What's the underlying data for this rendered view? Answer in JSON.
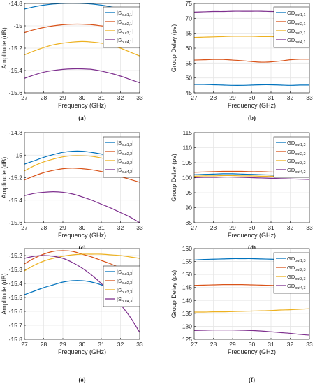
{
  "chart_data": [
    {
      "type": "line",
      "label": "(a)",
      "xlabel": "Frequency (GHz)",
      "ylabel": "Amplitude (dB)",
      "xlim": [
        27,
        33
      ],
      "ylim": [
        -15.6,
        -14.8
      ],
      "xticks": [
        27,
        28,
        29,
        30,
        31,
        32,
        33
      ],
      "yticks": [
        -15.6,
        -15.4,
        -15.2,
        -15,
        -14.8
      ],
      "ytick_labels": [
        "-15.6",
        "-15.4",
        "-15.2",
        "-15",
        "-14.8"
      ],
      "grid": true,
      "legend_position": "top-right",
      "x": [
        27,
        27.5,
        28,
        28.5,
        29,
        29.5,
        30,
        30.5,
        31,
        31.5,
        32,
        32.5,
        33
      ],
      "series": [
        {
          "name": "|S",
          "sub": "out1,1",
          "suffix": "|",
          "color": "#0072BD",
          "values": [
            -14.85,
            -14.83,
            -14.815,
            -14.805,
            -14.8,
            -14.798,
            -14.8,
            -14.805,
            -14.815,
            -14.83,
            -14.85,
            -14.88,
            -14.92
          ]
        },
        {
          "name": "|S",
          "sub": "out2,1",
          "suffix": "|",
          "color": "#D95319",
          "values": [
            -15.06,
            -15.035,
            -15.015,
            -15.0,
            -14.99,
            -14.985,
            -14.985,
            -14.99,
            -15.0,
            -15.01,
            -15.02,
            -15.035,
            -15.05
          ]
        },
        {
          "name": "|S",
          "sub": "out3,1",
          "suffix": "|",
          "color": "#EDB120",
          "values": [
            -15.26,
            -15.225,
            -15.195,
            -15.17,
            -15.155,
            -15.145,
            -15.14,
            -15.145,
            -15.155,
            -15.175,
            -15.2,
            -15.235,
            -15.27
          ]
        },
        {
          "name": "|S",
          "sub": "out4,1",
          "suffix": "|",
          "color": "#7E2F8E",
          "values": [
            -15.47,
            -15.44,
            -15.415,
            -15.4,
            -15.39,
            -15.385,
            -15.385,
            -15.39,
            -15.405,
            -15.425,
            -15.45,
            -15.48,
            -15.51
          ]
        }
      ]
    },
    {
      "type": "line",
      "label": "(b)",
      "xlabel": "Frequency (GHz)",
      "ylabel": "Group Delay (ps)",
      "xlim": [
        27,
        33
      ],
      "ylim": [
        45,
        75
      ],
      "xticks": [
        27,
        28,
        29,
        30,
        31,
        32,
        33
      ],
      "yticks": [
        45,
        50,
        55,
        60,
        65,
        70,
        75
      ],
      "ytick_labels": [
        "45",
        "50",
        "55",
        "60",
        "65",
        "70",
        "75"
      ],
      "grid": true,
      "legend_position": "top-right",
      "x": [
        27,
        27.5,
        28,
        28.5,
        29,
        29.5,
        30,
        30.5,
        31,
        31.5,
        32,
        32.5,
        33
      ],
      "series": [
        {
          "name": "GD",
          "sub": "out1,1",
          "suffix": "",
          "color": "#0072BD",
          "values": [
            47.8,
            47.8,
            47.7,
            47.6,
            47.5,
            47.5,
            47.6,
            47.7,
            47.7,
            47.6,
            47.5,
            47.6,
            47.6
          ]
        },
        {
          "name": "GD",
          "sub": "out2,1",
          "suffix": "",
          "color": "#D95319",
          "values": [
            56.0,
            56.1,
            56.2,
            56.2,
            56.0,
            55.8,
            55.5,
            55.3,
            55.4,
            55.7,
            56.1,
            56.3,
            56.3
          ]
        },
        {
          "name": "GD",
          "sub": "out3,1",
          "suffix": "",
          "color": "#EDB120",
          "values": [
            63.6,
            63.7,
            63.8,
            63.9,
            64.0,
            64.0,
            64.0,
            63.9,
            63.9,
            63.8,
            63.8,
            63.7,
            63.6
          ]
        },
        {
          "name": "GD",
          "sub": "out4,1",
          "suffix": "",
          "color": "#7E2F8E",
          "values": [
            72.1,
            72.2,
            72.3,
            72.3,
            72.4,
            72.4,
            72.4,
            72.4,
            72.3,
            72.3,
            72.3,
            72.2,
            72.2
          ]
        }
      ]
    },
    {
      "type": "line",
      "label": "(c)",
      "xlabel": "Frequency (GHz)",
      "ylabel": "Amplitude (dB)",
      "xlim": [
        27,
        33
      ],
      "ylim": [
        -15.6,
        -14.8
      ],
      "xticks": [
        27,
        28,
        29,
        30,
        31,
        32,
        33
      ],
      "yticks": [
        -15.6,
        -15.4,
        -15.2,
        -15,
        -14.8
      ],
      "ytick_labels": [
        "-15.6",
        "-15.4",
        "-15.2",
        "-15",
        "-14.8"
      ],
      "grid": true,
      "legend_position": "top-right",
      "x": [
        27,
        27.5,
        28,
        28.5,
        29,
        29.5,
        30,
        30.5,
        31,
        31.5,
        32,
        32.5,
        33
      ],
      "series": [
        {
          "name": "|S",
          "sub": "out1,2",
          "suffix": "|",
          "color": "#0072BD",
          "values": [
            -15.08,
            -15.05,
            -15.02,
            -14.995,
            -14.975,
            -14.965,
            -14.965,
            -14.975,
            -14.99,
            -15.01,
            -15.035,
            -15.06,
            -15.09
          ]
        },
        {
          "name": "|S",
          "sub": "out2,2",
          "suffix": "|",
          "color": "#D95319",
          "values": [
            -15.22,
            -15.185,
            -15.155,
            -15.135,
            -15.12,
            -15.115,
            -15.12,
            -15.13,
            -15.145,
            -15.165,
            -15.19,
            -15.215,
            -15.24
          ]
        },
        {
          "name": "|S",
          "sub": "out3,2",
          "suffix": "|",
          "color": "#EDB120",
          "values": [
            -15.14,
            -15.095,
            -15.06,
            -15.035,
            -15.015,
            -15.005,
            -15.005,
            -15.01,
            -15.025,
            -15.045,
            -15.075,
            -15.11,
            -15.15
          ]
        },
        {
          "name": "|S",
          "sub": "out4,2",
          "suffix": "|",
          "color": "#7E2F8E",
          "values": [
            -15.36,
            -15.34,
            -15.33,
            -15.325,
            -15.33,
            -15.345,
            -15.37,
            -15.4,
            -15.435,
            -15.47,
            -15.51,
            -15.55,
            -15.6
          ]
        }
      ]
    },
    {
      "type": "line",
      "label": "(d)",
      "xlabel": "Frequency (GHz)",
      "ylabel": "Group Delay (ps)",
      "xlim": [
        27,
        33
      ],
      "ylim": [
        85,
        115
      ],
      "xticks": [
        27,
        28,
        29,
        30,
        31,
        32,
        33
      ],
      "yticks": [
        85,
        90,
        95,
        100,
        105,
        110,
        115
      ],
      "ytick_labels": [
        "85",
        "90",
        "95",
        "100",
        "105",
        "110",
        "115"
      ],
      "grid": true,
      "legend_position": "top-right",
      "x": [
        27,
        27.5,
        28,
        28.5,
        29,
        29.5,
        30,
        30.5,
        31,
        31.5,
        32,
        32.5,
        33
      ],
      "series": [
        {
          "name": "GD",
          "sub": "out1,2",
          "suffix": "",
          "color": "#0072BD",
          "values": [
            101.0,
            101.1,
            101.2,
            101.3,
            101.3,
            101.2,
            101.1,
            101.0,
            100.9,
            100.8,
            100.7,
            100.7,
            100.7
          ]
        },
        {
          "name": "GD",
          "sub": "out2,2",
          "suffix": "",
          "color": "#D95319",
          "values": [
            101.8,
            101.9,
            102.0,
            102.1,
            102.1,
            102.1,
            102.0,
            102.0,
            101.9,
            101.8,
            101.8,
            101.7,
            101.7
          ]
        },
        {
          "name": "GD",
          "sub": "out3,2",
          "suffix": "",
          "color": "#EDB120",
          "values": [
            100.5,
            100.6,
            100.6,
            100.7,
            100.7,
            100.6,
            100.6,
            100.5,
            100.5,
            100.4,
            100.4,
            100.3,
            100.3
          ]
        },
        {
          "name": "GD",
          "sub": "out4,2",
          "suffix": "",
          "color": "#7E2F8E",
          "values": [
            100.0,
            100.1,
            100.1,
            100.2,
            100.2,
            100.1,
            100.0,
            99.9,
            99.8,
            99.7,
            99.6,
            99.5,
            99.4
          ]
        }
      ]
    },
    {
      "type": "line",
      "label": "(e)",
      "xlabel": "Frequency (GHz)",
      "ylabel": "Amplitude (dB)",
      "xlim": [
        27,
        33
      ],
      "ylim": [
        -15.8,
        -15.15
      ],
      "xticks": [
        27,
        28,
        29,
        30,
        31,
        32,
        33
      ],
      "yticks": [
        -15.8,
        -15.7,
        -15.6,
        -15.5,
        -15.4,
        -15.3,
        -15.2
      ],
      "ytick_labels": [
        "-15.8",
        "-15.7",
        "-15.6",
        "-15.5",
        "-15.4",
        "-15.3",
        "-15.2"
      ],
      "grid": true,
      "legend_position": "top-right",
      "x": [
        27,
        27.5,
        28,
        28.5,
        29,
        29.5,
        30,
        30.5,
        31,
        31.5,
        32,
        32.5,
        33
      ],
      "series": [
        {
          "name": "|S",
          "sub": "out1,3",
          "suffix": "|",
          "color": "#0072BD",
          "values": [
            -15.48,
            -15.455,
            -15.43,
            -15.41,
            -15.39,
            -15.38,
            -15.38,
            -15.39,
            -15.41,
            -15.44,
            -15.47,
            -15.5,
            -15.53
          ]
        },
        {
          "name": "|S",
          "sub": "out2,3",
          "suffix": "|",
          "color": "#D95319",
          "values": [
            -15.26,
            -15.22,
            -15.19,
            -15.17,
            -15.165,
            -15.17,
            -15.19,
            -15.21,
            -15.235,
            -15.26,
            -15.29,
            -15.32,
            -15.35
          ]
        },
        {
          "name": "|S",
          "sub": "out3,3",
          "suffix": "|",
          "color": "#EDB120",
          "values": [
            -15.31,
            -15.27,
            -15.24,
            -15.22,
            -15.205,
            -15.195,
            -15.19,
            -15.19,
            -15.19,
            -15.195,
            -15.2,
            -15.21,
            -15.22
          ]
        },
        {
          "name": "|S",
          "sub": "out4,3",
          "suffix": "|",
          "color": "#7E2F8E",
          "values": [
            -15.22,
            -15.205,
            -15.2,
            -15.205,
            -15.22,
            -15.25,
            -15.29,
            -15.34,
            -15.4,
            -15.47,
            -15.55,
            -15.64,
            -15.75
          ]
        }
      ]
    },
    {
      "type": "line",
      "label": "(f)",
      "xlabel": "Frequency (GHz)",
      "ylabel": "Group Delay (ps)",
      "xlim": [
        27,
        33
      ],
      "ylim": [
        125,
        160
      ],
      "xticks": [
        27,
        28,
        29,
        30,
        31,
        32,
        33
      ],
      "yticks": [
        125,
        130,
        135,
        140,
        145,
        150,
        155,
        160
      ],
      "ytick_labels": [
        "125",
        "130",
        "135",
        "140",
        "145",
        "150",
        "155",
        "160"
      ],
      "grid": true,
      "legend_position": "top-right",
      "x": [
        27,
        27.5,
        28,
        28.5,
        29,
        29.5,
        30,
        30.5,
        31,
        31.5,
        32,
        32.5,
        33
      ],
      "series": [
        {
          "name": "GD",
          "sub": "out1,3",
          "suffix": "",
          "color": "#0072BD",
          "values": [
            155.6,
            155.8,
            155.9,
            156.0,
            156.1,
            156.1,
            156.1,
            156.0,
            155.9,
            155.8,
            155.7,
            155.6,
            155.5
          ]
        },
        {
          "name": "GD",
          "sub": "out2,3",
          "suffix": "",
          "color": "#D95319",
          "values": [
            145.8,
            145.9,
            146.0,
            146.1,
            146.1,
            146.1,
            146.0,
            145.9,
            145.8,
            145.7,
            145.6,
            145.5,
            145.4
          ]
        },
        {
          "name": "GD",
          "sub": "out3,3",
          "suffix": "",
          "color": "#EDB120",
          "values": [
            135.5,
            135.5,
            135.6,
            135.6,
            135.7,
            135.8,
            135.9,
            136.0,
            136.1,
            136.3,
            136.4,
            136.6,
            136.8
          ]
        },
        {
          "name": "GD",
          "sub": "out4,3",
          "suffix": "",
          "color": "#7E2F8E",
          "values": [
            128.4,
            128.5,
            128.6,
            128.6,
            128.6,
            128.5,
            128.4,
            128.2,
            127.9,
            127.6,
            127.3,
            126.9,
            126.6
          ]
        }
      ]
    }
  ]
}
